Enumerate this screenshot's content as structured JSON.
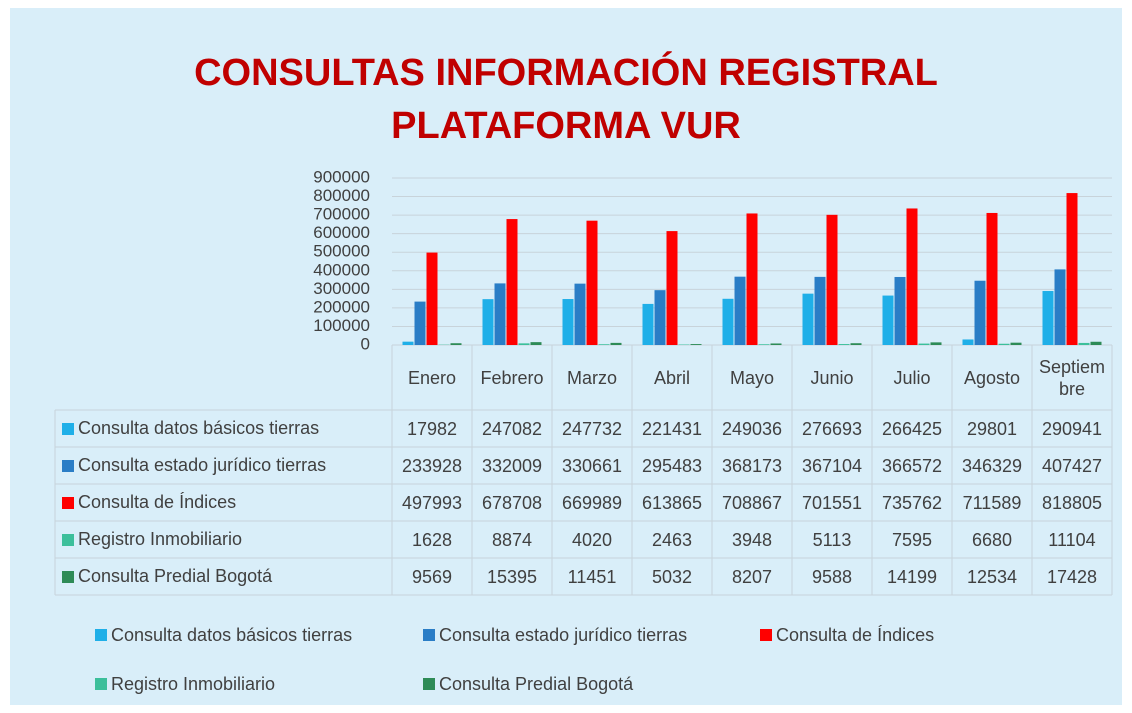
{
  "chart_data": {
    "type": "bar",
    "title": [
      "CONSULTAS INFORMACIÓN REGISTRAL",
      "PLATAFORMA VUR"
    ],
    "categories": [
      "Enero",
      "Febrero",
      "Marzo",
      "Abril",
      "Mayo",
      "Junio",
      "Julio",
      "Agosto",
      "Septiembre"
    ],
    "series": [
      {
        "name": "Consulta datos básicos tierras",
        "color": "#1fafe8",
        "values": [
          17982,
          247082,
          247732,
          221431,
          249036,
          276693,
          266425,
          29801,
          290941
        ]
      },
      {
        "name": "Consulta estado jurídico tierras",
        "color": "#2a7dc6",
        "values": [
          233928,
          332009,
          330661,
          295483,
          368173,
          367104,
          366572,
          346329,
          407427
        ]
      },
      {
        "name": "Consulta de Índices",
        "color": "#ff0000",
        "values": [
          497993,
          678708,
          669989,
          613865,
          708867,
          701551,
          735762,
          711589,
          818805
        ]
      },
      {
        "name": "Registro Inmobiliario",
        "color": "#3cbf9b",
        "values": [
          1628,
          8874,
          4020,
          2463,
          3948,
          5113,
          7595,
          6680,
          11104
        ]
      },
      {
        "name": "Consulta Predial Bogotá",
        "color": "#2e8b57",
        "values": [
          9569,
          15395,
          11451,
          5032,
          8207,
          9588,
          14199,
          12534,
          17428
        ]
      }
    ],
    "ylim": [
      0,
      900000
    ],
    "yticks": [
      0,
      100000,
      200000,
      300000,
      400000,
      500000,
      600000,
      700000,
      800000,
      900000
    ],
    "grid": true,
    "legend": "bottom"
  }
}
